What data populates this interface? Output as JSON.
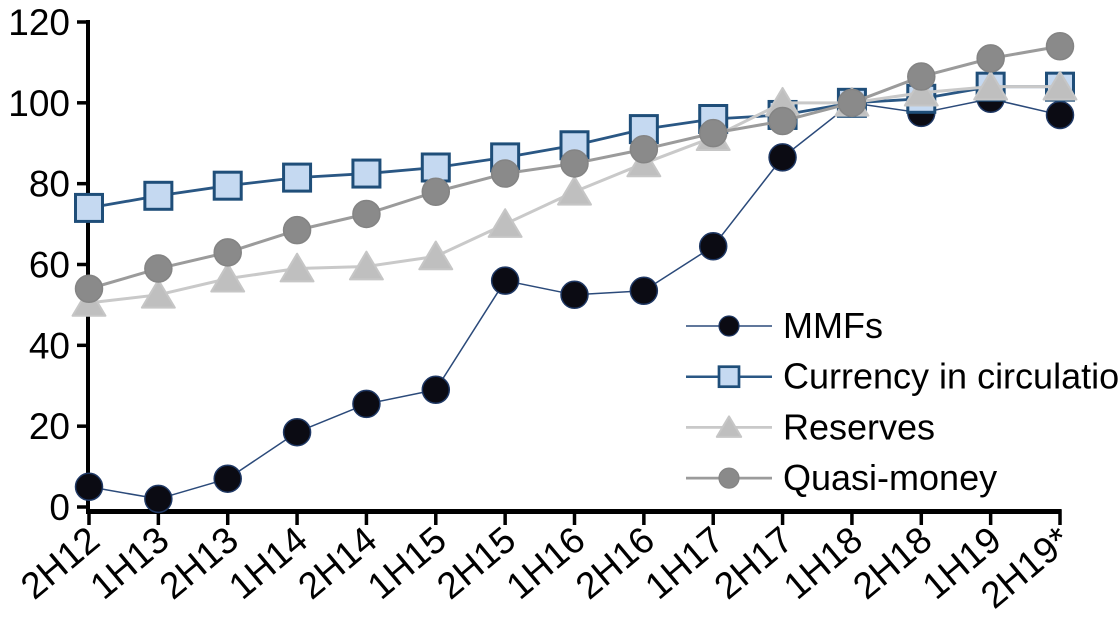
{
  "chart_data": {
    "type": "line",
    "title": "",
    "xlabel": "",
    "ylabel": "",
    "categories": [
      "2H12",
      "1H13",
      "2H13",
      "1H14",
      "2H14",
      "1H15",
      "2H15",
      "1H16",
      "2H16",
      "1H17",
      "2H17",
      "1H18",
      "2H18",
      "1H19",
      "2H19*"
    ],
    "yticks": [
      0,
      20,
      40,
      60,
      80,
      100,
      120
    ],
    "ylim": [
      0,
      120
    ],
    "grid": false,
    "legend_position": "inside-right",
    "index_note": "all series converge at 100 in 1H18 (indexed, 1H18 = 100)",
    "series": [
      {
        "name": "MMFs",
        "marker": "circle",
        "marker_color": "#0b0b13",
        "marker_border": "#1f3864",
        "line_color": "#2b4a7a",
        "line_width": 1.5,
        "values": [
          5,
          2,
          7,
          18.5,
          25.5,
          29,
          56,
          52.5,
          53.5,
          64.5,
          86.5,
          100,
          97.5,
          101,
          97
        ]
      },
      {
        "name": "Currency in circulation",
        "marker": "square",
        "marker_color": "#c5d9f1",
        "marker_border": "#1f4e79",
        "line_color": "#2a5784",
        "line_width": 2.8,
        "values": [
          74,
          77,
          79.5,
          81.5,
          82.5,
          84,
          86.5,
          89.5,
          93.5,
          96,
          97,
          100,
          101,
          104,
          104
        ]
      },
      {
        "name": "Reserves",
        "marker": "triangle",
        "marker_color": "#bfbfbf",
        "marker_border": "#c6c6c6",
        "line_color": "#c9c9c9",
        "line_width": 3,
        "values": [
          50.5,
          52.5,
          56.5,
          59,
          59.5,
          62,
          70,
          78,
          85,
          91.5,
          100,
          100,
          102.5,
          104,
          104
        ]
      },
      {
        "name": "Quasi-money",
        "marker": "circle",
        "marker_color": "#8a8a8a",
        "marker_border": "#848484",
        "line_color": "#9b9b9b",
        "line_width": 3,
        "values": [
          54,
          59,
          63,
          68.5,
          72.5,
          78,
          82.5,
          85,
          88.5,
          92.5,
          95.5,
          100,
          106.5,
          111,
          114
        ]
      }
    ]
  }
}
